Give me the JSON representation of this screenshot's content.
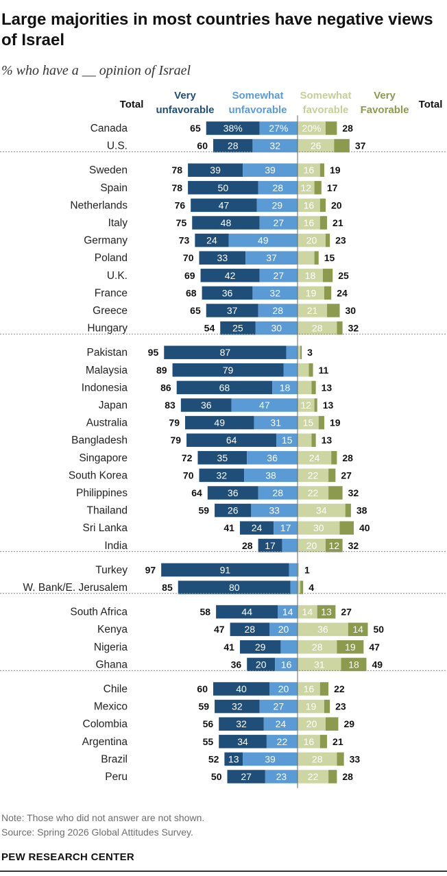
{
  "title": "Large majorities in most countries have negative views of Israel",
  "subtitle": "% who have a __ opinion of Israel",
  "colors": {
    "very_unfavorable": "#1f4e79",
    "somewhat_unfavorable": "#5b9bd5",
    "somewhat_favorable": "#cdd6a3",
    "very_favorable": "#8c9a4e",
    "header_very_unfav": "#1f4e79",
    "header_somewhat_unfav": "#5b9bd5",
    "header_somewhat_fav": "#c6cf96",
    "header_very_fav": "#8c9a4e",
    "divider": "#888888"
  },
  "chart_data": {
    "type": "bar",
    "subtype": "diverging-stacked",
    "headers": {
      "total_left": "Total",
      "very_unfavorable": "Very unfavorable",
      "somewhat_unfavorable": "Somewhat unfavorable",
      "somewhat_favorable": "Somewhat favorable",
      "very_favorable": "Very Favorable",
      "total_right": "Total"
    },
    "groups": [
      {
        "rows": [
          {
            "country": "Canada",
            "unfav_total": 65,
            "very_unfav": 38,
            "somewhat_unfav": 27,
            "somewhat_fav": 20,
            "very_fav": 8,
            "fav_total": 28,
            "vu_label": "38%",
            "su_label": "27%",
            "sf_label": "20%",
            "vf_label": ""
          },
          {
            "country": "U.S.",
            "unfav_total": 60,
            "very_unfav": 28,
            "somewhat_unfav": 32,
            "somewhat_fav": 26,
            "very_fav": 11,
            "fav_total": 37,
            "vu_label": "28",
            "su_label": "32",
            "sf_label": "26",
            "vf_label": ""
          }
        ]
      },
      {
        "rows": [
          {
            "country": "Sweden",
            "unfav_total": 78,
            "very_unfav": 39,
            "somewhat_unfav": 39,
            "somewhat_fav": 16,
            "very_fav": 3,
            "fav_total": 19,
            "vu_label": "39",
            "su_label": "39",
            "sf_label": "16",
            "vf_label": ""
          },
          {
            "country": "Spain",
            "unfav_total": 78,
            "very_unfav": 50,
            "somewhat_unfav": 28,
            "somewhat_fav": 12,
            "very_fav": 5,
            "fav_total": 17,
            "vu_label": "50",
            "su_label": "28",
            "sf_label": "12",
            "vf_label": ""
          },
          {
            "country": "Netherlands",
            "unfav_total": 76,
            "very_unfav": 47,
            "somewhat_unfav": 29,
            "somewhat_fav": 16,
            "very_fav": 4,
            "fav_total": 20,
            "vu_label": "47",
            "su_label": "29",
            "sf_label": "16",
            "vf_label": ""
          },
          {
            "country": "Italy",
            "unfav_total": 75,
            "very_unfav": 48,
            "somewhat_unfav": 27,
            "somewhat_fav": 16,
            "very_fav": 5,
            "fav_total": 21,
            "vu_label": "48",
            "su_label": "27",
            "sf_label": "16",
            "vf_label": ""
          },
          {
            "country": "Germany",
            "unfav_total": 73,
            "very_unfav": 24,
            "somewhat_unfav": 49,
            "somewhat_fav": 20,
            "very_fav": 3,
            "fav_total": 23,
            "vu_label": "24",
            "su_label": "49",
            "sf_label": "20",
            "vf_label": ""
          },
          {
            "country": "Poland",
            "unfav_total": 70,
            "very_unfav": 33,
            "somewhat_unfav": 37,
            "somewhat_fav": 12,
            "very_fav": 3,
            "fav_total": 15,
            "vu_label": "33",
            "su_label": "37",
            "sf_label": "",
            "vf_label": ""
          },
          {
            "country": "U.K.",
            "unfav_total": 69,
            "very_unfav": 42,
            "somewhat_unfav": 27,
            "somewhat_fav": 18,
            "very_fav": 7,
            "fav_total": 25,
            "vu_label": "42",
            "su_label": "27",
            "sf_label": "18",
            "vf_label": ""
          },
          {
            "country": "France",
            "unfav_total": 68,
            "very_unfav": 36,
            "somewhat_unfav": 32,
            "somewhat_fav": 19,
            "very_fav": 5,
            "fav_total": 24,
            "vu_label": "36",
            "su_label": "32",
            "sf_label": "19",
            "vf_label": ""
          },
          {
            "country": "Greece",
            "unfav_total": 65,
            "very_unfav": 37,
            "somewhat_unfav": 28,
            "somewhat_fav": 21,
            "very_fav": 9,
            "fav_total": 30,
            "vu_label": "37",
            "su_label": "28",
            "sf_label": "21",
            "vf_label": ""
          },
          {
            "country": "Hungary",
            "unfav_total": 54,
            "very_unfav": 25,
            "somewhat_unfav": 30,
            "somewhat_fav": 28,
            "very_fav": 4,
            "fav_total": 32,
            "vu_label": "25",
            "su_label": "30",
            "sf_label": "28",
            "vf_label": ""
          }
        ]
      },
      {
        "rows": [
          {
            "country": "Pakistan",
            "unfav_total": 95,
            "very_unfav": 87,
            "somewhat_unfav": 8,
            "somewhat_fav": 2,
            "very_fav": 1,
            "fav_total": 3,
            "vu_label": "87",
            "su_label": "",
            "sf_label": "",
            "vf_label": ""
          },
          {
            "country": "Malaysia",
            "unfav_total": 89,
            "very_unfav": 79,
            "somewhat_unfav": 10,
            "somewhat_fav": 8,
            "very_fav": 3,
            "fav_total": 11,
            "vu_label": "79",
            "su_label": "",
            "sf_label": "",
            "vf_label": ""
          },
          {
            "country": "Indonesia",
            "unfav_total": 86,
            "very_unfav": 68,
            "somewhat_unfav": 18,
            "somewhat_fav": 10,
            "very_fav": 3,
            "fav_total": 13,
            "vu_label": "68",
            "su_label": "18",
            "sf_label": "",
            "vf_label": ""
          },
          {
            "country": "Japan",
            "unfav_total": 83,
            "very_unfav": 36,
            "somewhat_unfav": 47,
            "somewhat_fav": 12,
            "very_fav": 2,
            "fav_total": 13,
            "vu_label": "36",
            "su_label": "47",
            "sf_label": "12",
            "vf_label": ""
          },
          {
            "country": "Australia",
            "unfav_total": 79,
            "very_unfav": 49,
            "somewhat_unfav": 31,
            "somewhat_fav": 15,
            "very_fav": 4,
            "fav_total": 19,
            "vu_label": "49",
            "su_label": "31",
            "sf_label": "15",
            "vf_label": ""
          },
          {
            "country": "Bangladesh",
            "unfav_total": 79,
            "very_unfav": 64,
            "somewhat_unfav": 15,
            "somewhat_fav": 10,
            "very_fav": 3,
            "fav_total": 13,
            "vu_label": "64",
            "su_label": "15",
            "sf_label": "",
            "vf_label": ""
          },
          {
            "country": "Singapore",
            "unfav_total": 72,
            "very_unfav": 35,
            "somewhat_unfav": 36,
            "somewhat_fav": 24,
            "very_fav": 4,
            "fav_total": 28,
            "vu_label": "35",
            "su_label": "36",
            "sf_label": "24",
            "vf_label": ""
          },
          {
            "country": "South Korea",
            "unfav_total": 70,
            "very_unfav": 32,
            "somewhat_unfav": 38,
            "somewhat_fav": 22,
            "very_fav": 5,
            "fav_total": 27,
            "vu_label": "32",
            "su_label": "38",
            "sf_label": "22",
            "vf_label": ""
          },
          {
            "country": "Philippines",
            "unfav_total": 64,
            "very_unfav": 36,
            "somewhat_unfav": 28,
            "somewhat_fav": 22,
            "very_fav": 10,
            "fav_total": 32,
            "vu_label": "36",
            "su_label": "28",
            "sf_label": "22",
            "vf_label": ""
          },
          {
            "country": "Thailand",
            "unfav_total": 59,
            "very_unfav": 26,
            "somewhat_unfav": 33,
            "somewhat_fav": 34,
            "very_fav": 4,
            "fav_total": 38,
            "vu_label": "26",
            "su_label": "33",
            "sf_label": "34",
            "vf_label": ""
          },
          {
            "country": "Sri Lanka",
            "unfav_total": 41,
            "very_unfav": 24,
            "somewhat_unfav": 17,
            "somewhat_fav": 30,
            "very_fav": 10,
            "fav_total": 40,
            "vu_label": "24",
            "su_label": "17",
            "sf_label": "30",
            "vf_label": ""
          },
          {
            "country": "India",
            "unfav_total": 28,
            "very_unfav": 17,
            "somewhat_unfav": 11,
            "somewhat_fav": 20,
            "very_fav": 12,
            "fav_total": 32,
            "vu_label": "17",
            "su_label": "",
            "sf_label": "20",
            "vf_label": "12"
          }
        ]
      },
      {
        "rows": [
          {
            "country": "Turkey",
            "unfav_total": 97,
            "very_unfav": 91,
            "somewhat_unfav": 6,
            "somewhat_fav": 1,
            "very_fav": 0,
            "fav_total": 1,
            "vu_label": "91",
            "su_label": "",
            "sf_label": "",
            "vf_label": ""
          },
          {
            "country": "W. Bank/E. Jerusalem",
            "unfav_total": 85,
            "very_unfav": 80,
            "somewhat_unfav": 5,
            "somewhat_fav": 2,
            "very_fav": 2,
            "fav_total": 4,
            "vu_label": "80",
            "su_label": "",
            "sf_label": "",
            "vf_label": ""
          }
        ]
      },
      {
        "rows": [
          {
            "country": "South Africa",
            "unfav_total": 58,
            "very_unfav": 44,
            "somewhat_unfav": 14,
            "somewhat_fav": 14,
            "very_fav": 13,
            "fav_total": 27,
            "vu_label": "44",
            "su_label": "14",
            "sf_label": "14",
            "vf_label": "13"
          },
          {
            "country": "Kenya",
            "unfav_total": 47,
            "very_unfav": 28,
            "somewhat_unfav": 20,
            "somewhat_fav": 36,
            "very_fav": 14,
            "fav_total": 50,
            "vu_label": "28",
            "su_label": "20",
            "sf_label": "36",
            "vf_label": "14"
          },
          {
            "country": "Nigeria",
            "unfav_total": 41,
            "very_unfav": 29,
            "somewhat_unfav": 12,
            "somewhat_fav": 28,
            "very_fav": 19,
            "fav_total": 47,
            "vu_label": "29",
            "su_label": "",
            "sf_label": "28",
            "vf_label": "19"
          },
          {
            "country": "Ghana",
            "unfav_total": 36,
            "very_unfav": 20,
            "somewhat_unfav": 16,
            "somewhat_fav": 31,
            "very_fav": 18,
            "fav_total": 49,
            "vu_label": "20",
            "su_label": "16",
            "sf_label": "31",
            "vf_label": "18"
          }
        ]
      },
      {
        "rows": [
          {
            "country": "Chile",
            "unfav_total": 60,
            "very_unfav": 40,
            "somewhat_unfav": 20,
            "somewhat_fav": 16,
            "very_fav": 6,
            "fav_total": 22,
            "vu_label": "40",
            "su_label": "20",
            "sf_label": "16",
            "vf_label": ""
          },
          {
            "country": "Mexico",
            "unfav_total": 59,
            "very_unfav": 32,
            "somewhat_unfav": 27,
            "somewhat_fav": 19,
            "very_fav": 4,
            "fav_total": 23,
            "vu_label": "32",
            "su_label": "27",
            "sf_label": "19",
            "vf_label": ""
          },
          {
            "country": "Colombia",
            "unfav_total": 56,
            "very_unfav": 32,
            "somewhat_unfav": 24,
            "somewhat_fav": 20,
            "very_fav": 9,
            "fav_total": 29,
            "vu_label": "32",
            "su_label": "24",
            "sf_label": "20",
            "vf_label": ""
          },
          {
            "country": "Argentina",
            "unfav_total": 55,
            "very_unfav": 34,
            "somewhat_unfav": 22,
            "somewhat_fav": 16,
            "very_fav": 5,
            "fav_total": 21,
            "vu_label": "34",
            "su_label": "22",
            "sf_label": "16",
            "vf_label": ""
          },
          {
            "country": "Brazil",
            "unfav_total": 52,
            "very_unfav": 13,
            "somewhat_unfav": 39,
            "somewhat_fav": 28,
            "very_fav": 5,
            "fav_total": 33,
            "vu_label": "13",
            "su_label": "39",
            "sf_label": "28",
            "vf_label": ""
          },
          {
            "country": "Peru",
            "unfav_total": 50,
            "very_unfav": 27,
            "somewhat_unfav": 23,
            "somewhat_fav": 22,
            "very_fav": 6,
            "fav_total": 28,
            "vu_label": "27",
            "su_label": "23",
            "sf_label": "22",
            "vf_label": ""
          }
        ]
      }
    ]
  },
  "note": "Note: Those who did not answer are not shown.",
  "source": "Source: Spring 2026 Global Attitudes Survey.",
  "footer": "PEW RESEARCH CENTER"
}
